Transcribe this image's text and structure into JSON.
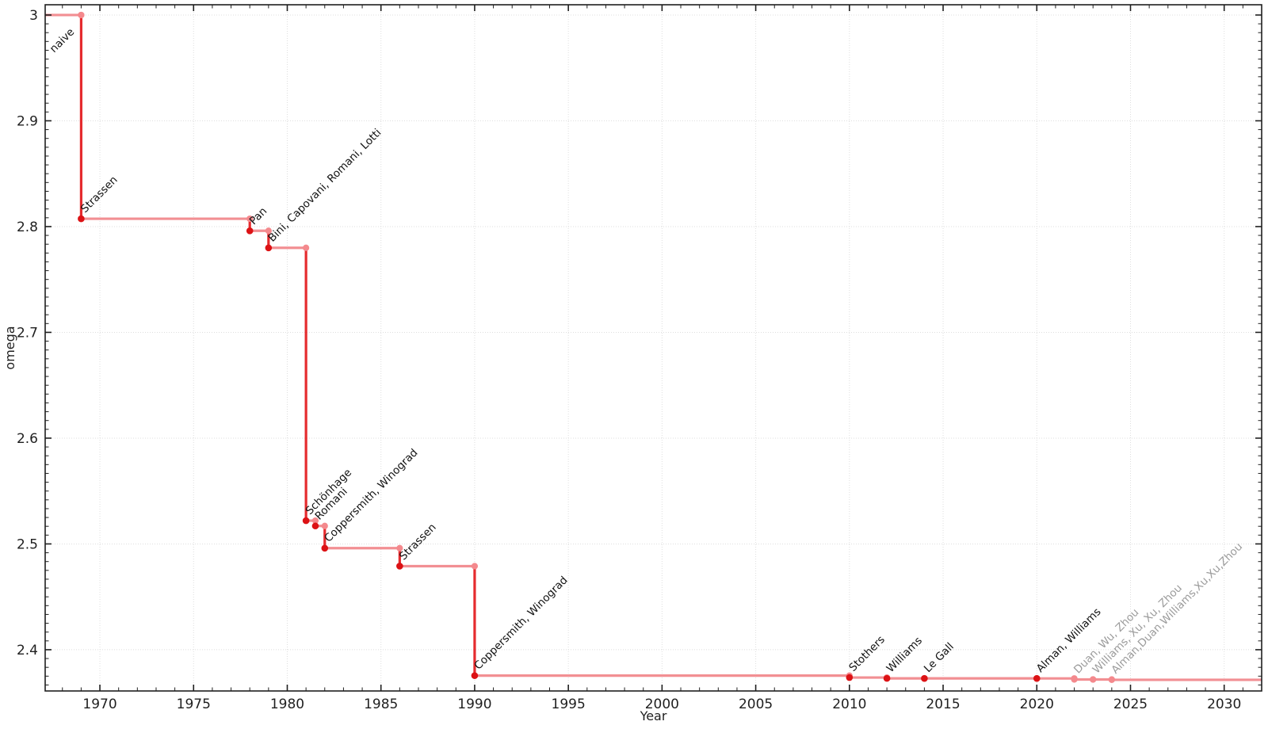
{
  "chart_data": {
    "type": "line",
    "subtype": "step-post",
    "title": "",
    "xlabel": "Year",
    "ylabel": "omega",
    "xlim": [
      1967.08,
      2032.0
    ],
    "ylim": [
      2.361,
      3.0097
    ],
    "x_major_ticks": [
      1970,
      1975,
      1980,
      1985,
      1990,
      1995,
      2000,
      2005,
      2010,
      2015,
      2020,
      2025,
      2030
    ],
    "x_minor_step": 1,
    "y_major_ticks": [
      3,
      2.9,
      2.8,
      2.7,
      2.6,
      2.5,
      2.4
    ],
    "y_major_tick_labels": [
      "3",
      "2.9",
      "2.8",
      "2.7",
      "2.6",
      "2.5",
      "2.4"
    ],
    "y_minor_divisions": 12,
    "grid": true,
    "legend": false,
    "points": [
      {
        "label": "naive",
        "year": 1969,
        "omega": 3.0,
        "marker": "light",
        "label_style": "dark",
        "label_side": "below-left"
      },
      {
        "label": "Strassen",
        "year": 1969,
        "omega": 2.8074,
        "marker": "dark",
        "label_style": "dark",
        "label_side": "above-right"
      },
      {
        "label": "Pan",
        "year": 1978,
        "omega": 2.796,
        "marker": "dark",
        "label_style": "dark",
        "label_side": "above-right"
      },
      {
        "label": "Bini, Capovani, Romani, Lotti",
        "year": 1979,
        "omega": 2.7799,
        "marker": "dark",
        "label_style": "dark",
        "label_side": "above-right"
      },
      {
        "label": "Schönhage",
        "year": 1981,
        "omega": 2.522,
        "marker": "dark",
        "label_style": "dark",
        "label_side": "below-left"
      },
      {
        "label": "Romani",
        "year": 1981.5,
        "omega": 2.517,
        "marker": "dark",
        "label_style": "dark",
        "label_side": "above-right"
      },
      {
        "label": "Coppersmith, Winograd",
        "year": 1982,
        "omega": 2.496,
        "marker": "dark",
        "label_style": "dark",
        "label_side": "above-right"
      },
      {
        "label": "Strassen",
        "year": 1986,
        "omega": 2.479,
        "marker": "dark",
        "label_style": "dark",
        "label_side": "above-right"
      },
      {
        "label": "Coppersmith, Winograd",
        "year": 1990,
        "omega": 2.3755,
        "marker": "dark",
        "label_style": "dark",
        "label_side": "above-right"
      },
      {
        "label": "Stothers",
        "year": 2010,
        "omega": 2.3737,
        "marker": "dark",
        "label_style": "dark",
        "label_side": "above-right"
      },
      {
        "label": "Williams",
        "year": 2012,
        "omega": 2.3729,
        "marker": "dark",
        "label_style": "dark",
        "label_side": "above-right"
      },
      {
        "label": "Le Gall",
        "year": 2014,
        "omega": 2.37287,
        "marker": "dark",
        "label_style": "dark",
        "label_side": "above-right"
      },
      {
        "label": "Alman, Williams",
        "year": 2020,
        "omega": 2.37286,
        "marker": "dark",
        "label_style": "dark",
        "label_side": "above-right"
      },
      {
        "label": "Duan, Wu, Zhou",
        "year": 2022,
        "omega": 2.37188,
        "marker": "light",
        "label_style": "muted",
        "label_side": "above-right"
      },
      {
        "label": "Williams, Xu, Xu, Zhou",
        "year": 2023,
        "omega": 2.371866,
        "marker": "light",
        "label_style": "muted",
        "label_side": "above-right"
      },
      {
        "label": "Alman,Duan,Williams,Xu,Xu,Zhou",
        "year": 2024,
        "omega": 2.371552,
        "marker": "light",
        "label_style": "muted",
        "label_side": "above-right"
      }
    ],
    "colors": {
      "line_dark": "#e52b2e",
      "line_light": "#f28f93",
      "marker_dark": "#dc1215",
      "marker_light": "#f4898d",
      "grid": "#dedede",
      "axis": "#1f1f1f",
      "tick_label": "#1f1f1f",
      "label": "#111111",
      "label_muted": "#9b9b9b"
    }
  }
}
